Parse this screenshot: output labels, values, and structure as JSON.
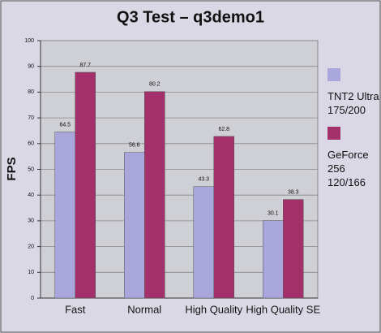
{
  "chart_data": {
    "type": "bar",
    "title": "Q3 Test – q3demo1",
    "ylabel": "FPS",
    "categories": [
      "Fast",
      "Normal",
      "High Quality",
      "High Quality SE"
    ],
    "series": [
      {
        "name": "TNT2 Ultra 175/200",
        "color": "#a9a6dc",
        "values": [
          64.5,
          56.6,
          43.3,
          30.1
        ]
      },
      {
        "name": "GeForce 256 120/166",
        "color": "#a3306b",
        "values": [
          87.7,
          80.2,
          62.8,
          38.3
        ]
      }
    ],
    "ylim": [
      0,
      100
    ],
    "yticks": [
      0,
      10,
      20,
      30,
      40,
      50,
      60,
      70,
      80,
      90,
      100
    ],
    "grid": true,
    "legend": "right"
  }
}
